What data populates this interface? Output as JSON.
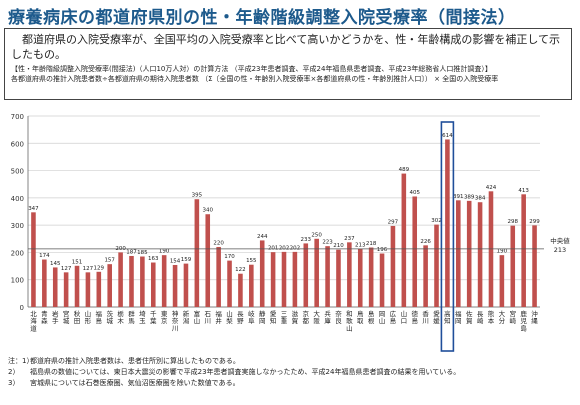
{
  "title": "療養病床の都道府県別の性・年齢階級調整入院受療率（間接法）",
  "summary": {
    "lead": "都道府県の入院受療率が、全国平均の入院受療率と比べて高いかどうかを、性・年齢構成の影響を補正して示したもの。",
    "method": "【性・年齢階級調整入院受療率(間接法)（人口10万人対）の計算方法 （平成23年患者調査、平成24年福島県患者調査、平成23年総務省人口推計調査）】",
    "formula": "各都道府県の推計入院患者数÷各都道府県の期待入院患者数 （Σ〔全国の性・年齢別入院受療率×各都道府県の性・年齢別推計人口〕） × 全国の入院受療率"
  },
  "chart_data": {
    "type": "bar",
    "categories": [
      "北海道",
      "青森",
      "岩手",
      "宮城",
      "秋田",
      "山形",
      "福島",
      "茨城",
      "栃木",
      "群馬",
      "埼玉",
      "千葉",
      "東京",
      "神奈川",
      "新潟",
      "富山",
      "石川",
      "福井",
      "山梨",
      "長野",
      "岐阜",
      "静岡",
      "愛知",
      "三重",
      "滋賀",
      "京都",
      "大阪",
      "兵庫",
      "奈良",
      "和歌山",
      "鳥取",
      "島根",
      "岡山",
      "広島",
      "山口",
      "徳島",
      "香川",
      "愛媛",
      "高知",
      "福岡",
      "佐賀",
      "長崎",
      "熊本",
      "大分",
      "宮崎",
      "鹿児島",
      "沖縄"
    ],
    "values": [
      347,
      174,
      145,
      127,
      151,
      127,
      129,
      157,
      200,
      187,
      185,
      163,
      190,
      154,
      159,
      395,
      340,
      220,
      170,
      122,
      155,
      244,
      201,
      202,
      202,
      233,
      250,
      223,
      210,
      237,
      213,
      218,
      196,
      297,
      489,
      405,
      226,
      302,
      614,
      391,
      389,
      384,
      424,
      190,
      298,
      413,
      299
    ],
    "ylim": [
      0,
      700
    ],
    "yticks": [
      0,
      100,
      200,
      300,
      400,
      500,
      600,
      700
    ],
    "highlight_index": 38,
    "reference": {
      "label": "中央値",
      "value": 213
    },
    "bar_color": "#c0504d",
    "highlight_color": "#1f4e9a",
    "grid": true
  },
  "notes": [
    {
      "mark": "注：1）",
      "text": "都道府県の推計入院患者数は、患者住所別に算出したものである。"
    },
    {
      "mark": "2）",
      "text": "福島県の数値については、東日本大震災の影響で平成23年患者調査実施しなかったため、平成24年福島県患者調査の結果を用いている。"
    },
    {
      "mark": "3）",
      "text": "宮城県については石巻医療圏、気仙沼医療圏を除いた数値である。"
    }
  ]
}
